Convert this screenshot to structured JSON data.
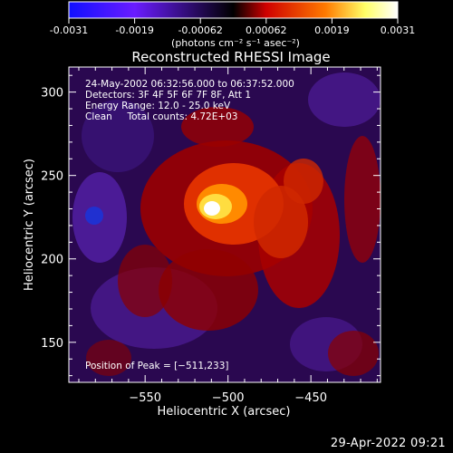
{
  "colorbar": {
    "tick_labels": [
      "-0.0031",
      "-0.0019",
      "-0.00062",
      "0.00062",
      "0.0019",
      "0.0031"
    ],
    "units_label": "(photons cm⁻² s⁻¹ asec⁻²)",
    "range": [
      -0.0031,
      0.0031
    ],
    "colors": [
      "#1010ff",
      "#6a1cff",
      "#000000",
      "#cf0000",
      "#ff7a00",
      "#ffff66",
      "#ffffff"
    ]
  },
  "chart_data": {
    "type": "heatmap",
    "title": "Reconstructed RHESSI Image",
    "xlabel": "Heliocentric X (arcsec)",
    "ylabel": "Heliocentric Y (arcsec)",
    "xlim": [
      -596,
      -408
    ],
    "ylim": [
      126,
      315
    ],
    "x_ticks": [
      -550,
      -500,
      -450
    ],
    "y_ticks": [
      150,
      200,
      250,
      300
    ],
    "x_tick_labels": [
      "−550",
      "−500",
      "−450"
    ],
    "y_tick_labels": [
      "150",
      "200",
      "250",
      "300"
    ],
    "peak": {
      "x": -511,
      "y": 233
    },
    "annotations": {
      "time_range": "24-May-2002 06:32:56.000 to 06:37:52.000",
      "detectors": "Detectors: 3F 4F 5F 6F 7F 8F, Att 1",
      "energy_range": "Energy Range: 12.0 - 25.0 keV",
      "method_counts": "Clean     Total counts: 4.72E+03",
      "peak_position": "Position of Peak = [−511,233]"
    }
  },
  "footer_timestamp": "29-Apr-2022 09:21"
}
